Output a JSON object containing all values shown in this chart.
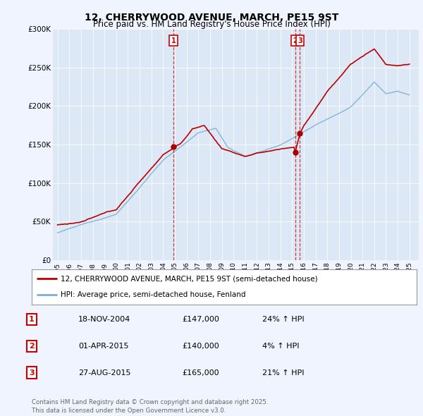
{
  "title": "12, CHERRYWOOD AVENUE, MARCH, PE15 9ST",
  "subtitle": "Price paid vs. HM Land Registry's House Price Index (HPI)",
  "red_label": "12, CHERRYWOOD AVENUE, MARCH, PE15 9ST (semi-detached house)",
  "blue_label": "HPI: Average price, semi-detached house, Fenland",
  "footer": "Contains HM Land Registry data © Crown copyright and database right 2025.\nThis data is licensed under the Open Government Licence v3.0.",
  "transactions": [
    {
      "num": "1",
      "date": "18-NOV-2004",
      "price": "£147,000",
      "hpi": "24% ↑ HPI",
      "year": 2004.88,
      "price_val": 147000
    },
    {
      "num": "2",
      "date": "01-APR-2015",
      "price": "£140,000",
      "hpi": "4% ↑ HPI",
      "year": 2015.25,
      "price_val": 140000
    },
    {
      "num": "3",
      "date": "27-AUG-2015",
      "price": "£165,000",
      "hpi": "21% ↑ HPI",
      "year": 2015.66,
      "price_val": 165000
    }
  ],
  "fig_bg": "#f0f4ff",
  "plot_bg": "#dce8f5",
  "red_color": "#bb0000",
  "blue_color": "#7aafd4",
  "ylim": [
    0,
    300000
  ],
  "xlim_start": 1994.6,
  "xlim_end": 2025.8
}
